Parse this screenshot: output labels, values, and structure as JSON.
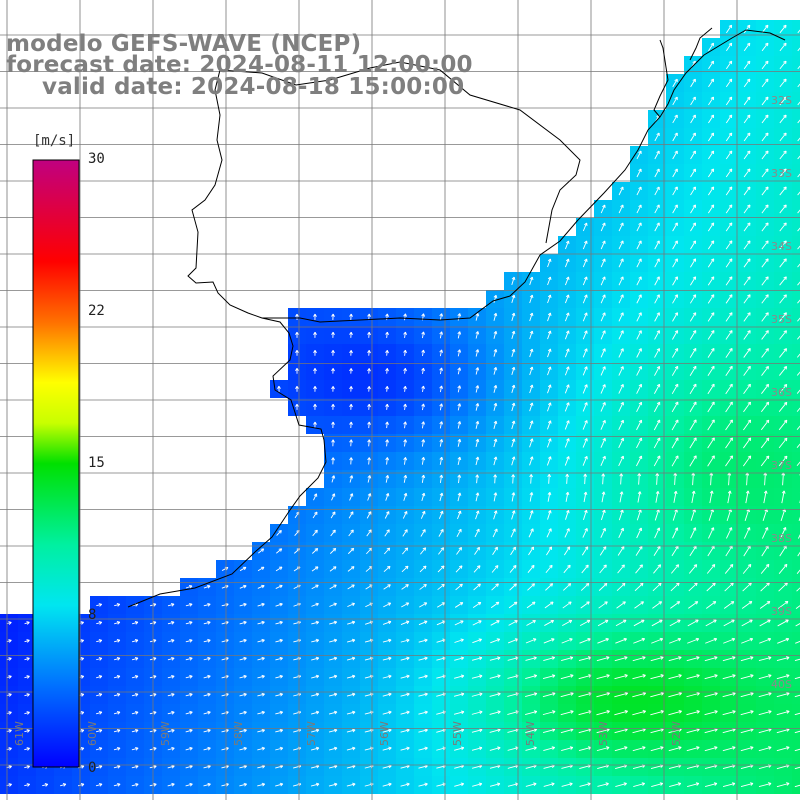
{
  "title": {
    "model": "modelo GEFS-WAVE (NCEP)",
    "forecast": "forecast date: 2024-08-11 12:00:00",
    "valid": "valid date: 2024-08-18 15:00:00"
  },
  "colorbar": {
    "unit": "[m/s]",
    "ticks": [
      "30",
      "22",
      "15",
      "8",
      "0"
    ],
    "stops": [
      {
        "value": 0,
        "color": "#0000ff"
      },
      {
        "value": 4,
        "color": "#0070ff"
      },
      {
        "value": 8,
        "color": "#00e6f0"
      },
      {
        "value": 11,
        "color": "#00f0a0"
      },
      {
        "value": 15,
        "color": "#00e000"
      },
      {
        "value": 17,
        "color": "#c8ff00"
      },
      {
        "value": 19,
        "color": "#ffff00"
      },
      {
        "value": 22,
        "color": "#ff7000"
      },
      {
        "value": 25,
        "color": "#ff0000"
      },
      {
        "value": 30,
        "color": "#c00080"
      }
    ]
  },
  "grid": {
    "lat_labels": [
      "32S",
      "33S",
      "34S",
      "35S",
      "36S",
      "37S",
      "38S",
      "39S",
      "40S"
    ],
    "lon_labels": [
      "61W",
      "60W",
      "59W",
      "58W",
      "57W",
      "56W",
      "55W",
      "54W",
      "53W",
      "52W"
    ]
  },
  "colors": {
    "land": "#ffffff",
    "coast": "#000000",
    "grid": "#777777",
    "arrow": "#ffffff",
    "title": "#7f7f7f"
  }
}
